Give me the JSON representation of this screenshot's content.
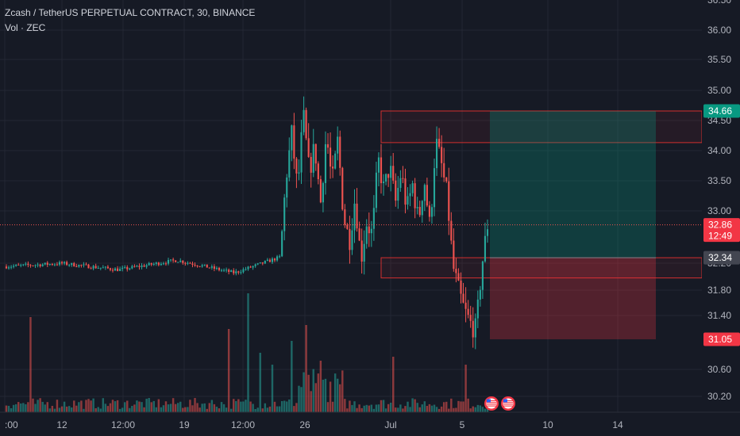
{
  "legend": {
    "symbol_line": "Zcash / TetherUS PERPETUAL CONTRACT, 30, BINANCE",
    "volume_line": "Vol · ZEC"
  },
  "colors": {
    "background": "#161a25",
    "up": "#26a69a",
    "down": "#ef5350",
    "text": "#b2b5be",
    "grid": "#232733",
    "zone_border": "#d32f2f",
    "tp_label": "#089981",
    "sl_label": "#f23645",
    "entry_label": "#434651"
  },
  "chart_data": {
    "type": "candlestick",
    "symbol": "Zcash / TetherUS PERPETUAL CONTRACT",
    "timeframe": "30",
    "exchange": "BINANCE",
    "y_ticks": [
      "36.00",
      "35.50",
      "35.00",
      "34.50",
      "34.00",
      "33.50",
      "33.00",
      "32.20",
      "31.80",
      "31.40",
      "30.60",
      "30.20"
    ],
    "y_tick_values": [
      36.0,
      35.5,
      35.0,
      34.5,
      34.0,
      33.5,
      33.0,
      32.2,
      31.8,
      31.4,
      30.6,
      30.2
    ],
    "y_axis_top_partial": "36.50",
    "x_ticks": [
      ":00",
      "12",
      "12:00",
      "19",
      "12:00",
      "26",
      "Jul",
      "5",
      "10",
      "14"
    ],
    "price_labels": {
      "take_profit": "34.66",
      "current_price": "32.86",
      "countdown": "12:49",
      "entry": "32.34",
      "stop_loss": "31.05"
    },
    "zones": [
      {
        "kind": "supply",
        "top": 34.66,
        "bottom": 34.16
      },
      {
        "kind": "demand",
        "top": 32.34,
        "bottom": 32.02
      }
    ],
    "position": {
      "type": "long",
      "entry": 32.34,
      "take_profit": 34.66,
      "stop_loss": 31.05
    },
    "path": [
      [
        0,
        32.2
      ],
      [
        10,
        32.25
      ],
      [
        20,
        32.15
      ],
      [
        30,
        32.3
      ],
      [
        40,
        32.1
      ],
      [
        48,
        32.35
      ],
      [
        49,
        33.6
      ],
      [
        50,
        34.3
      ],
      [
        51,
        33.4
      ],
      [
        52,
        34.6
      ],
      [
        53,
        33.7
      ],
      [
        54,
        34.1
      ],
      [
        55,
        33.2
      ],
      [
        56,
        34.3
      ],
      [
        57,
        33.5
      ],
      [
        58,
        34.2
      ],
      [
        59,
        33.0
      ],
      [
        60,
        32.6
      ],
      [
        61,
        33.3
      ],
      [
        62,
        32.3
      ],
      [
        63,
        32.9
      ],
      [
        64,
        32.7
      ],
      [
        65,
        33.9
      ],
      [
        66,
        33.4
      ],
      [
        67,
        33.8
      ],
      [
        68,
        33.2
      ],
      [
        69,
        33.7
      ],
      [
        70,
        33.1
      ],
      [
        71,
        33.5
      ],
      [
        72,
        32.9
      ],
      [
        73,
        33.6
      ],
      [
        74,
        32.8
      ],
      [
        75,
        34.2
      ],
      [
        76,
        33.8
      ],
      [
        77,
        33.3
      ],
      [
        78,
        32.2
      ],
      [
        79,
        31.8
      ],
      [
        80,
        31.5
      ],
      [
        81,
        31.3
      ],
      [
        82,
        31.2
      ],
      [
        83,
        32.2
      ],
      [
        84,
        32.86
      ]
    ]
  }
}
